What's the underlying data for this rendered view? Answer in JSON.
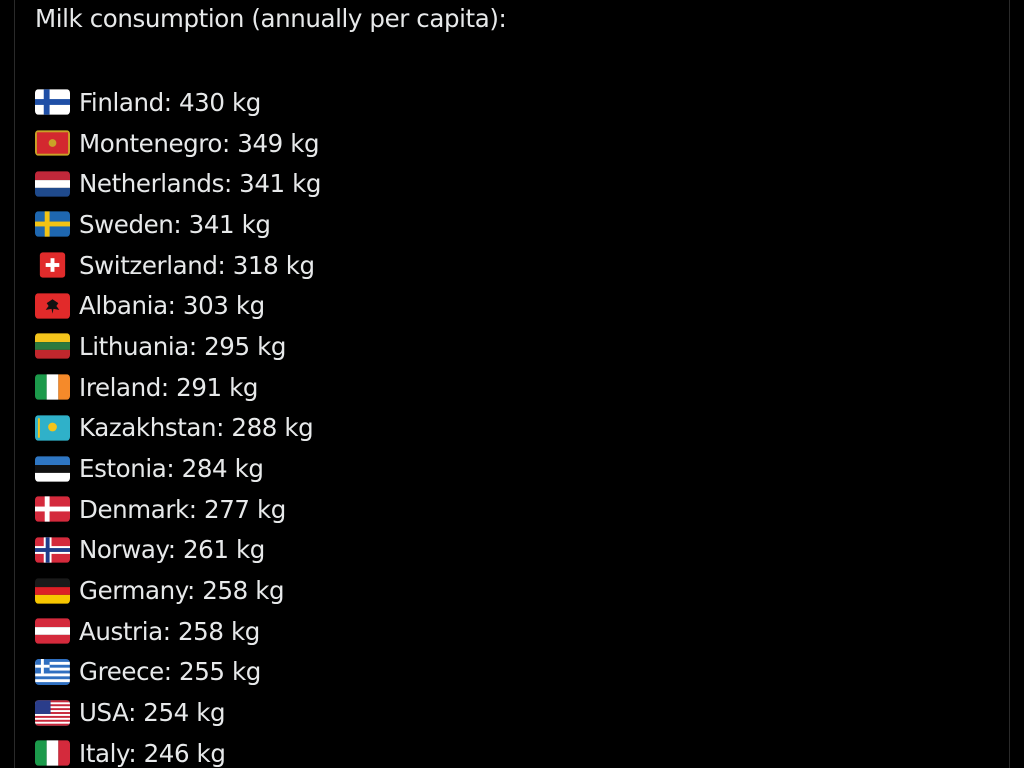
{
  "post": {
    "heading": "Milk consumption (annually per capita):",
    "items": [
      {
        "label": "Finland: 430 kg",
        "flag": "finland-flag-icon"
      },
      {
        "label": "Montenegro: 349 kg",
        "flag": "montenegro-flag-icon"
      },
      {
        "label": "Netherlands: 341 kg",
        "flag": "netherlands-flag-icon"
      },
      {
        "label": "Sweden: 341 kg",
        "flag": "sweden-flag-icon"
      },
      {
        "label": "Switzerland: 318 kg",
        "flag": "switzerland-flag-icon"
      },
      {
        "label": "Albania: 303 kg",
        "flag": "albania-flag-icon"
      },
      {
        "label": "Lithuania: 295 kg",
        "flag": "lithuania-flag-icon"
      },
      {
        "label": "Ireland: 291 kg",
        "flag": "ireland-flag-icon"
      },
      {
        "label": "Kazakhstan: 288 kg",
        "flag": "kazakhstan-flag-icon"
      },
      {
        "label": "Estonia: 284 kg",
        "flag": "estonia-flag-icon"
      },
      {
        "label": "Denmark: 277 kg",
        "flag": "denmark-flag-icon"
      },
      {
        "label": "Norway: 261 kg",
        "flag": "norway-flag-icon"
      },
      {
        "label": "Germany: 258 kg",
        "flag": "germany-flag-icon"
      },
      {
        "label": "Austria: 258 kg",
        "flag": "austria-flag-icon"
      },
      {
        "label": "Greece: 255 kg",
        "flag": "greece-flag-icon"
      },
      {
        "label": "USA: 254 kg",
        "flag": "usa-flag-icon"
      },
      {
        "label": "Italy: 246 kg",
        "flag": "italy-flag-icon"
      }
    ]
  },
  "colors": {
    "background": "#000000",
    "text": "#e7e9ea",
    "frame_border": "#2a2a2a"
  }
}
